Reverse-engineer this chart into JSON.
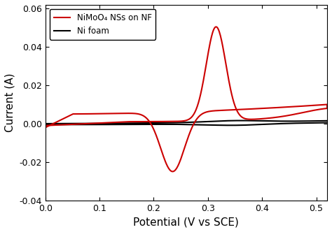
{
  "title": "",
  "xlabel": "Potential (V vs SCE)",
  "ylabel": "Current (A)",
  "xlim": [
    0.0,
    0.52
  ],
  "ylim": [
    -0.04,
    0.062
  ],
  "xticks": [
    0.0,
    0.1,
    0.2,
    0.3,
    0.4,
    0.5
  ],
  "yticks": [
    -0.04,
    -0.02,
    0.0,
    0.02,
    0.04,
    0.06
  ],
  "legend": [
    {
      "label": "NiMoO₄ NSs on NF",
      "color": "#cc0000"
    },
    {
      "label": "Ni foam",
      "color": "#000000"
    }
  ],
  "nimoo4_color": "#cc0000",
  "nifoam_color": "#000000",
  "linewidth": 1.5,
  "background_color": "#ffffff",
  "tick_fontsize": 9,
  "label_fontsize": 11
}
